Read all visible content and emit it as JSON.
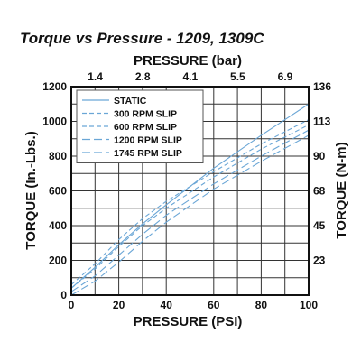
{
  "chart_data": {
    "type": "line",
    "title": "Torque vs Pressure - 1209, 1309C",
    "xlabel": "PRESSURE (PSI)",
    "ylabel": "TORQUE (In.-Lbs.)",
    "x2label": "PRESSURE (bar)",
    "y2label": "TORQUE (N-m)",
    "xlim": [
      0,
      100
    ],
    "ylim": [
      0,
      1200
    ],
    "x_ticks": [
      0,
      20,
      40,
      60,
      80,
      100
    ],
    "y_ticks": [
      0,
      200,
      400,
      600,
      800,
      1000,
      1200
    ],
    "x2_ticks": [
      {
        "label": "1.4",
        "psi": 20
      },
      {
        "label": "2.8",
        "psi": 40
      },
      {
        "label": "4.1",
        "psi": 60
      },
      {
        "label": "5.5",
        "psi": 80
      },
      {
        "label": "6.9",
        "psi": 100
      }
    ],
    "y2_ticks": [
      {
        "label": "23",
        "inlb": 200
      },
      {
        "label": "45",
        "inlb": 400
      },
      {
        "label": "68",
        "inlb": 600
      },
      {
        "label": "90",
        "inlb": 800
      },
      {
        "label": "113",
        "inlb": 1000
      },
      {
        "label": "136",
        "inlb": 1200
      }
    ],
    "grid": true,
    "legend_position": "top-left",
    "line_color": "#6aa6d6",
    "series": [
      {
        "name": "STATIC",
        "dash": "solid",
        "x": [
          0,
          10,
          20,
          30,
          40,
          60,
          80,
          100
        ],
        "y": [
          40,
          160,
          290,
          410,
          520,
          730,
          920,
          1100
        ]
      },
      {
        "name": "300 RPM SLIP",
        "dash": "dash",
        "x": [
          0,
          10,
          20,
          30,
          40,
          60,
          80,
          100
        ],
        "y": [
          60,
          180,
          320,
          440,
          540,
          710,
          870,
          1010
        ]
      },
      {
        "name": "600 RPM SLIP",
        "dash": "dash",
        "x": [
          0,
          10,
          20,
          30,
          40,
          60,
          80,
          100
        ],
        "y": [
          40,
          150,
          280,
          400,
          500,
          680,
          840,
          980
        ]
      },
      {
        "name": "1200 RPM SLIP",
        "dash": "longdash",
        "x": [
          0,
          10,
          20,
          30,
          40,
          60,
          80,
          100
        ],
        "y": [
          20,
          110,
          230,
          350,
          460,
          640,
          800,
          950
        ]
      },
      {
        "name": "1745 RPM SLIP",
        "dash": "longdash",
        "x": [
          0,
          10,
          20,
          30,
          40,
          60,
          80,
          100
        ],
        "y": [
          0,
          80,
          190,
          310,
          420,
          610,
          770,
          920
        ]
      }
    ]
  }
}
